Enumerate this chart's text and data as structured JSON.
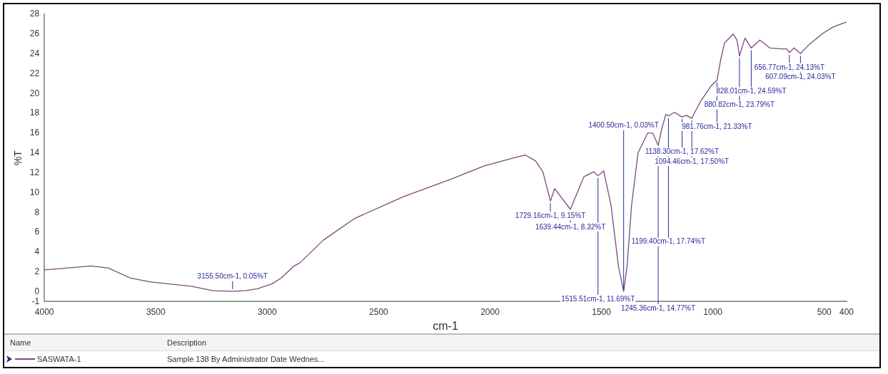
{
  "chart_data": {
    "type": "line",
    "xlabel": "cm-1",
    "ylabel": "%T",
    "xlim": [
      4000,
      400
    ],
    "xticks": [
      4000,
      3500,
      3000,
      2500,
      2000,
      1500,
      1000,
      500,
      400
    ],
    "ylim": [
      -1,
      28
    ],
    "yticks": [
      28,
      26,
      24,
      22,
      20,
      18,
      16,
      14,
      12,
      10,
      8,
      6,
      4,
      2,
      0,
      -1
    ],
    "grid": false,
    "legend": "bottom",
    "marker": "none",
    "line_style": "solid",
    "series": [
      {
        "name": "SASWATA-1",
        "color": "#7b4a7b",
        "x": [
          4000,
          3790,
          3714,
          3616,
          3527,
          3340,
          3242,
          3155.5,
          3100,
          3044,
          2978,
          2936,
          2880,
          2854,
          2748,
          2607,
          2387,
          2170,
          2026,
          1894,
          1842,
          1796,
          1763,
          1729.16,
          1710,
          1639.44,
          1579,
          1535,
          1515.51,
          1490,
          1457,
          1424,
          1400.5,
          1385,
          1365,
          1336,
          1293,
          1270,
          1245.36,
          1230,
          1211,
          1199.4,
          1172,
          1138.3,
          1119,
          1094.46,
          1086,
          1053,
          1007,
          981.76,
          965,
          948,
          909,
          892,
          880.82,
          856,
          828.01,
          790,
          744,
          692,
          669,
          656.77,
          636,
          607.09,
          570,
          505,
          462,
          416,
          400
        ],
        "values": [
          2.2,
          2.6,
          2.4,
          1.4,
          1.0,
          0.55,
          0.1,
          0.05,
          0.1,
          0.3,
          0.8,
          1.4,
          2.6,
          2.9,
          5.2,
          7.4,
          9.6,
          11.4,
          12.7,
          13.5,
          13.8,
          13.2,
          12.1,
          9.15,
          10.4,
          8.32,
          11.6,
          12.1,
          11.69,
          12.2,
          8.7,
          2.6,
          0.03,
          2.6,
          8.7,
          14.0,
          16.0,
          16.0,
          14.77,
          16.4,
          17.9,
          17.74,
          18.1,
          17.62,
          17.8,
          17.5,
          17.9,
          19.3,
          20.8,
          21.33,
          23.4,
          25.1,
          26.0,
          25.4,
          23.79,
          25.6,
          24.59,
          25.4,
          24.6,
          24.5,
          24.5,
          24.13,
          24.6,
          24.03,
          24.9,
          26.1,
          26.7,
          27.1,
          27.2
        ]
      }
    ],
    "annotations": [
      {
        "text": "3155.50cm-1, 0.05%T",
        "x": 3155.5,
        "y": 0.05
      },
      {
        "text": "1729.16cm-1, 9.15%T",
        "x": 1729.16,
        "y": 9.15
      },
      {
        "text": "1639.44cm-1, 8.32%T",
        "x": 1639.44,
        "y": 8.32
      },
      {
        "text": "1515.51cm-1, 11.69%T",
        "x": 1515.51,
        "y": 11.69
      },
      {
        "text": "1400.50cm-1, 0.03%T",
        "x": 1400.5,
        "y": 0.03
      },
      {
        "text": "1245.36cm-1, 14.77%T",
        "x": 1245.36,
        "y": 14.77
      },
      {
        "text": "1199.40cm-1, 17.74%T",
        "x": 1199.4,
        "y": 17.74
      },
      {
        "text": "1138.30cm-1, 17.62%T",
        "x": 1138.3,
        "y": 17.62
      },
      {
        "text": "1094.46cm-1, 17.50%T",
        "x": 1094.46,
        "y": 17.5
      },
      {
        "text": "981.76cm-1, 21.33%T",
        "x": 981.76,
        "y": 21.33
      },
      {
        "text": "880.82cm-1, 23.79%T",
        "x": 880.82,
        "y": 23.79
      },
      {
        "text": "828.01cm-1, 24.59%T",
        "x": 828.01,
        "y": 24.59
      },
      {
        "text": "656.77cm-1, 24.13%T",
        "x": 656.77,
        "y": 24.13
      },
      {
        "text": "607.09cm-1, 24.03%T",
        "x": 607.09,
        "y": 24.03
      },
      "Name",
      "Description",
      "Sample 138 By Administrator Date Wednes..."
    ]
  }
}
